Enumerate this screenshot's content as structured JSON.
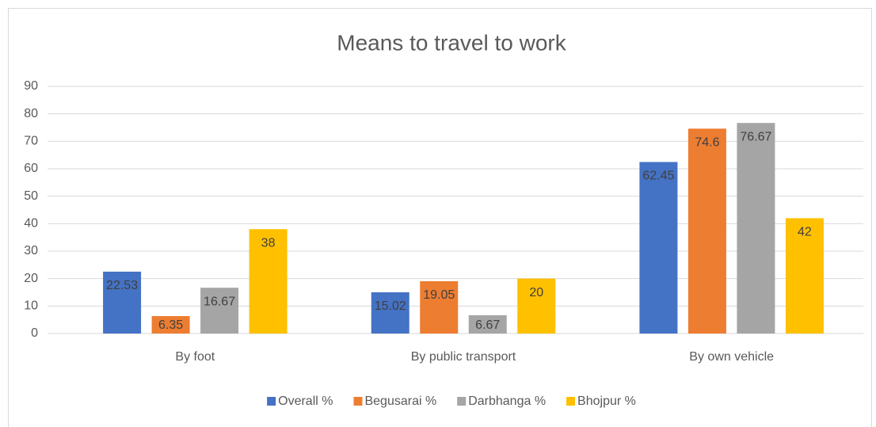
{
  "chart_data": {
    "type": "bar",
    "title": "Means to travel to work",
    "categories": [
      "By foot",
      "By public transport",
      "By own vehicle"
    ],
    "series": [
      {
        "name": "Overall %",
        "color": "#4472c4",
        "values": [
          22.53,
          15.02,
          62.45
        ]
      },
      {
        "name": "Begusarai %",
        "color": "#ed7d31",
        "values": [
          6.35,
          19.05,
          74.6
        ]
      },
      {
        "name": "Darbhanga %",
        "color": "#a5a5a5",
        "values": [
          16.67,
          6.67,
          76.67
        ]
      },
      {
        "name": "Bhojpur %",
        "color": "#ffc000",
        "values": [
          38,
          20,
          42
        ]
      }
    ],
    "ylim": [
      0,
      90
    ],
    "yticks": [
      0,
      10,
      20,
      30,
      40,
      50,
      60,
      70,
      80,
      90
    ],
    "grid": true,
    "legend": "bottom"
  }
}
